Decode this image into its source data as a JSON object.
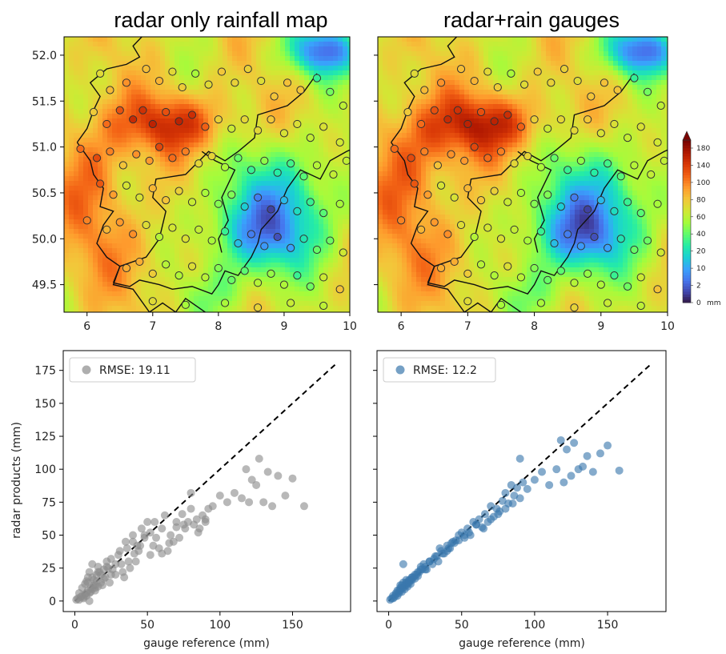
{
  "chart_data": [
    {
      "type": "heatmap",
      "title": "radar only rainfall map",
      "xlim": [
        5.65,
        10.0
      ],
      "ylim": [
        49.2,
        52.2
      ],
      "xticks": [
        "6",
        "7",
        "8",
        "9",
        "10"
      ],
      "yticks": [
        "49.5",
        "50.0",
        "50.5",
        "51.0",
        "51.5",
        "52.0"
      ],
      "variant": "radar"
    },
    {
      "type": "heatmap",
      "title": "radar+rain gauges",
      "xlim": [
        5.65,
        10.0
      ],
      "ylim": [
        49.2,
        52.2
      ],
      "xticks": [
        "6",
        "7",
        "8",
        "9",
        "10"
      ],
      "variant": "merged",
      "colorbar": {
        "ticks": [
          "180",
          "140",
          "100",
          "80",
          "60",
          "40",
          "20",
          "10",
          "2",
          "0"
        ],
        "unit": "mm",
        "colors": [
          "#30123b",
          "#4145ab",
          "#4675ed",
          "#39a2fc",
          "#1bcfd4",
          "#24eca6",
          "#61fc6c",
          "#a4fc3b",
          "#d1e834",
          "#f3c63a",
          "#fe9b2d",
          "#f36315",
          "#d93806",
          "#b11901",
          "#7a0402"
        ]
      }
    },
    {
      "type": "scatter",
      "legend": "RMSE: 19.11",
      "legend_position": "top-left",
      "xlabel": "gauge reference (mm)",
      "ylabel": "radar products (mm)",
      "xlim": [
        -8,
        190
      ],
      "ylim": [
        -8,
        190
      ],
      "xticks": [
        "0",
        "50",
        "100",
        "150"
      ],
      "yticks": [
        "0",
        "25",
        "50",
        "75",
        "100",
        "125",
        "150",
        "175"
      ],
      "color": "#8c8c8c",
      "reference_line": [
        [
          0,
          0
        ],
        [
          180,
          180
        ]
      ],
      "x": [
        1,
        2,
        3,
        4,
        5,
        6,
        7,
        8,
        9,
        10,
        11,
        12,
        13,
        14,
        15,
        16,
        18,
        20,
        3,
        5,
        7,
        9,
        11,
        13,
        15,
        17,
        19,
        21,
        23,
        25,
        6,
        8,
        10,
        12,
        14,
        16,
        22,
        24,
        26,
        28,
        30,
        32,
        34,
        36,
        38,
        40,
        42,
        44,
        46,
        48,
        50,
        52,
        54,
        56,
        58,
        60,
        62,
        64,
        66,
        68,
        70,
        72,
        74,
        76,
        78,
        80,
        82,
        84,
        86,
        88,
        90,
        92,
        95,
        100,
        105,
        110,
        115,
        118,
        120,
        122,
        125,
        127,
        130,
        133,
        136,
        140,
        145,
        150,
        158,
        35,
        40,
        43,
        48,
        52,
        55,
        60,
        65,
        70,
        75,
        80,
        85,
        90,
        25,
        28,
        31,
        33,
        37,
        41,
        45,
        18,
        20,
        22,
        12,
        14,
        16,
        8,
        9,
        10
      ],
      "y": [
        1,
        2,
        1,
        3,
        4,
        2,
        5,
        4,
        8,
        6,
        10,
        9,
        12,
        8,
        15,
        11,
        14,
        17,
        6,
        10,
        13,
        18,
        7,
        16,
        20,
        22,
        12,
        18,
        25,
        20,
        3,
        15,
        22,
        28,
        12,
        26,
        30,
        14,
        24,
        20,
        35,
        28,
        18,
        40,
        25,
        45,
        30,
        38,
        55,
        50,
        60,
        35,
        42,
        48,
        40,
        55,
        65,
        38,
        50,
        45,
        60,
        48,
        66,
        55,
        60,
        82,
        58,
        62,
        55,
        65,
        60,
        70,
        72,
        80,
        75,
        82,
        78,
        100,
        75,
        92,
        88,
        108,
        75,
        98,
        72,
        95,
        80,
        93,
        72,
        45,
        50,
        42,
        48,
        52,
        60,
        36,
        44,
        56,
        58,
        70,
        52,
        62,
        32,
        28,
        38,
        22,
        30,
        36,
        42,
        20,
        24,
        26,
        18,
        10,
        22,
        6,
        14,
        0
      ]
    },
    {
      "type": "scatter",
      "legend": "RMSE: 12.2",
      "legend_position": "top-left",
      "xlabel": "gauge reference (mm)",
      "xlim": [
        -8,
        190
      ],
      "ylim": [
        -8,
        190
      ],
      "xticks": [
        "0",
        "50",
        "100",
        "150"
      ],
      "color": "#3a78ad",
      "reference_line": [
        [
          0,
          0
        ],
        [
          180,
          180
        ]
      ],
      "x": [
        1,
        2,
        3,
        4,
        5,
        6,
        7,
        8,
        9,
        10,
        11,
        12,
        13,
        14,
        15,
        16,
        18,
        20,
        3,
        5,
        7,
        9,
        11,
        13,
        15,
        17,
        19,
        21,
        23,
        25,
        6,
        8,
        10,
        12,
        14,
        16,
        22,
        24,
        26,
        28,
        30,
        32,
        34,
        36,
        38,
        40,
        42,
        44,
        46,
        48,
        50,
        52,
        54,
        56,
        58,
        60,
        62,
        64,
        66,
        68,
        70,
        72,
        74,
        76,
        78,
        80,
        82,
        84,
        86,
        88,
        90,
        92,
        95,
        100,
        105,
        110,
        115,
        118,
        120,
        122,
        125,
        127,
        130,
        133,
        136,
        140,
        145,
        150,
        158,
        35,
        40,
        43,
        48,
        52,
        55,
        60,
        65,
        70,
        75,
        80,
        85,
        90,
        25,
        28,
        31,
        33,
        37,
        41,
        45,
        18,
        20,
        22,
        12,
        14,
        16,
        8,
        9,
        10
      ],
      "y": [
        1,
        2,
        2,
        3,
        5,
        4,
        6,
        8,
        7,
        10,
        9,
        12,
        11,
        14,
        13,
        16,
        17,
        19,
        4,
        6,
        8,
        10,
        12,
        14,
        16,
        18,
        20,
        22,
        24,
        26,
        8,
        12,
        14,
        16,
        15,
        18,
        26,
        28,
        24,
        30,
        28,
        34,
        30,
        38,
        36,
        42,
        40,
        45,
        46,
        50,
        52,
        48,
        55,
        50,
        60,
        58,
        62,
        56,
        66,
        60,
        72,
        64,
        70,
        68,
        76,
        82,
        74,
        88,
        80,
        86,
        108,
        90,
        85,
        92,
        98,
        88,
        100,
        122,
        90,
        115,
        95,
        120,
        100,
        102,
        110,
        98,
        112,
        118,
        99,
        40,
        38,
        44,
        46,
        50,
        52,
        58,
        55,
        62,
        66,
        70,
        74,
        78,
        24,
        30,
        32,
        34,
        36,
        40,
        44,
        20,
        22,
        24,
        14,
        16,
        18,
        10,
        12,
        28
      ]
    }
  ]
}
